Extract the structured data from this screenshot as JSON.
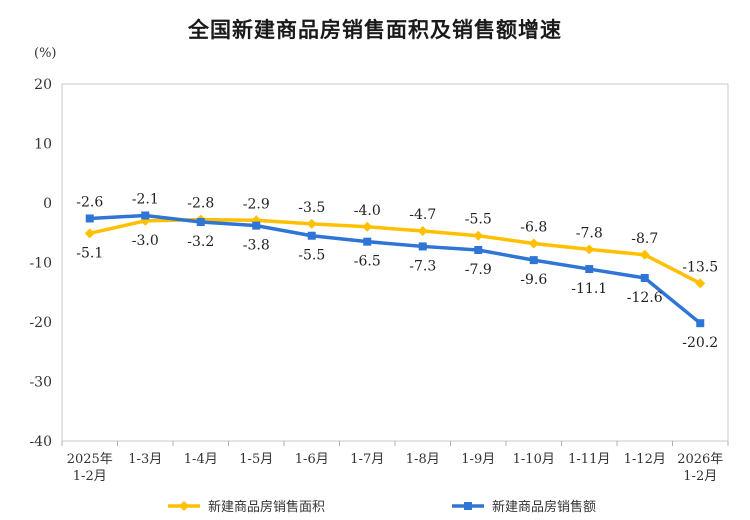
{
  "chart_data": {
    "type": "line",
    "title": "全国新建商品房销售面积及销售额增速",
    "ylabel": "(%)",
    "xlabel": "",
    "ylim": [
      -40,
      20
    ],
    "yticks": [
      20,
      10,
      0,
      -10,
      -20,
      -30,
      -40
    ],
    "grid": false,
    "legend_position": "bottom",
    "categories": [
      [
        "2025年",
        "1-2月"
      ],
      [
        "1-3月"
      ],
      [
        "1-4月"
      ],
      [
        "1-5月"
      ],
      [
        "1-6月"
      ],
      [
        "1-7月"
      ],
      [
        "1-8月"
      ],
      [
        "1-9月"
      ],
      [
        "1-10月"
      ],
      [
        "1-11月"
      ],
      [
        "1-12月"
      ],
      [
        "2026年",
        "1-2月"
      ]
    ],
    "series": [
      {
        "name": "新建商品房销售面积",
        "color": "#FFC000",
        "marker": "diamond",
        "label_position": [
          "below",
          "below",
          "above",
          "above",
          "above",
          "above",
          "above",
          "above",
          "above",
          "above",
          "above",
          "above"
        ],
        "values": [
          -5.1,
          -3.0,
          -2.8,
          -2.9,
          -3.5,
          -4.0,
          -4.7,
          -5.5,
          -6.8,
          -7.8,
          -8.7,
          -13.5
        ]
      },
      {
        "name": "新建商品房销售额",
        "color": "#2E75D6",
        "marker": "square",
        "label_position": [
          "above",
          "above",
          "below",
          "below",
          "below",
          "below",
          "below",
          "below",
          "below",
          "below",
          "below",
          "below"
        ],
        "values": [
          -2.6,
          -2.1,
          -3.2,
          -3.8,
          -5.5,
          -6.5,
          -7.3,
          -7.9,
          -9.6,
          -11.1,
          -12.6,
          -20.2
        ]
      }
    ]
  }
}
